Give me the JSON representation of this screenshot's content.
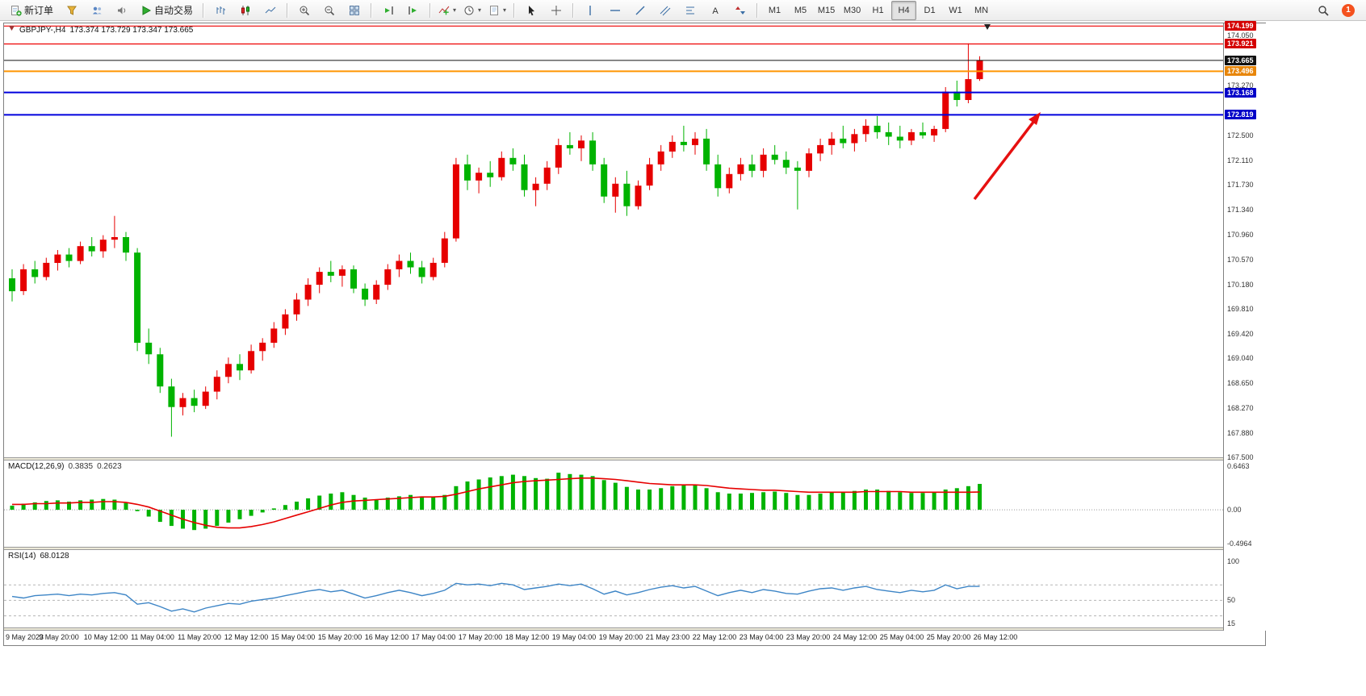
{
  "toolbar": {
    "groups": [
      {
        "items": [
          {
            "name": "new-order",
            "label": "新订单",
            "icon": "newOrder"
          },
          {
            "name": "strategy-tester",
            "icon": "funnel"
          },
          {
            "name": "profiles",
            "icon": "profiles"
          },
          {
            "name": "sounds",
            "icon": "sound"
          },
          {
            "name": "autotrading",
            "label": "自动交易",
            "icon": "play"
          }
        ]
      },
      {
        "items": [
          {
            "name": "bar-chart",
            "icon": "bars"
          },
          {
            "name": "candlestick-chart",
            "icon": "candles"
          },
          {
            "name": "line-chart",
            "icon": "linechart"
          }
        ]
      },
      {
        "items": [
          {
            "name": "zoom-in",
            "icon": "zoomin"
          },
          {
            "name": "zoom-out",
            "icon": "zoomout"
          },
          {
            "name": "tile-windows",
            "icon": "tile"
          }
        ]
      },
      {
        "items": [
          {
            "name": "auto-scroll",
            "icon": "scroll"
          },
          {
            "name": "chart-shift",
            "icon": "shift"
          }
        ]
      },
      {
        "items": [
          {
            "name": "indicators",
            "icon": "indicators",
            "dropdown": true
          },
          {
            "name": "periods",
            "icon": "clock",
            "dropdown": true
          },
          {
            "name": "templates",
            "icon": "template",
            "dropdown": true
          }
        ]
      },
      {
        "items": [
          {
            "name": "cursor",
            "icon": "cursor"
          },
          {
            "name": "crosshair",
            "icon": "crosshair"
          }
        ]
      },
      {
        "items": [
          {
            "name": "vertical-line",
            "icon": "vline"
          },
          {
            "name": "horizontal-line",
            "icon": "hline"
          },
          {
            "name": "trendline",
            "icon": "trend"
          },
          {
            "name": "equidistant-channel",
            "icon": "channel"
          },
          {
            "name": "fibonacci",
            "icon": "fibo"
          },
          {
            "name": "text-tool",
            "icon": "text"
          },
          {
            "name": "arrows-tool",
            "icon": "arrows"
          }
        ]
      },
      {
        "tf": true,
        "items": [
          {
            "name": "tf-m1",
            "label": "M1"
          },
          {
            "name": "tf-m5",
            "label": "M5"
          },
          {
            "name": "tf-m15",
            "label": "M15"
          },
          {
            "name": "tf-m30",
            "label": "M30"
          },
          {
            "name": "tf-h1",
            "label": "H1"
          },
          {
            "name": "tf-h4",
            "label": "H4",
            "active": true
          },
          {
            "name": "tf-d1",
            "label": "D1"
          },
          {
            "name": "tf-w1",
            "label": "W1"
          },
          {
            "name": "tf-mn",
            "label": "MN"
          }
        ]
      }
    ],
    "right": {
      "notification_count": "1"
    }
  },
  "chart": {
    "symbol_period": "GBPJPY-,H4",
    "ohlc": "173.374 173.729 173.347 173.665"
  },
  "colors": {
    "up": "#e60000",
    "down": "#00b300",
    "macd_hist": "#00b300",
    "signal": "#e60000",
    "rsi_line": "#3d85c6",
    "arrow": "#e61010",
    "badge_red": "#d40000",
    "badge_black": "#111111",
    "badge_orange": "#e8860a",
    "badge_blue": "#0000c8"
  },
  "chart_data": {
    "type": "candlestick",
    "title": "GBPJPY-,H4 173.374 173.729 173.347 173.665",
    "symbol": "GBPJPY-",
    "period": "H4",
    "ohlc_current": {
      "open": "173.374",
      "high": "173.729",
      "low": "173.347",
      "close": "173.665"
    },
    "price_axis": {
      "ylim": [
        167.5,
        174.24
      ],
      "labels": [
        "174.050",
        "173.270",
        "172.500",
        "172.110",
        "171.730",
        "171.340",
        "170.960",
        "170.570",
        "170.180",
        "169.810",
        "169.420",
        "169.040",
        "168.650",
        "168.270",
        "167.880",
        "167.500"
      ],
      "badges": [
        {
          "text": "174.199",
          "value": 174.199,
          "color": "#d40000"
        },
        {
          "text": "173.921",
          "value": 173.921,
          "color": "#d40000"
        },
        {
          "text": "173.665",
          "value": 173.665,
          "color": "#111111"
        },
        {
          "text": "173.496",
          "value": 173.496,
          "color": "#e8860a"
        },
        {
          "text": "173.168",
          "value": 173.168,
          "color": "#0000c8"
        },
        {
          "text": "172.819",
          "value": 172.819,
          "color": "#0000c8"
        }
      ]
    },
    "horizontal_lines": [
      {
        "value": 174.199,
        "color": "#ee0000",
        "width": 1.2
      },
      {
        "value": 173.921,
        "color": "#ee0000",
        "width": 1.2
      },
      {
        "value": 173.665,
        "color": "#111111",
        "width": 1
      },
      {
        "value": 173.496,
        "color": "#ff9500",
        "width": 2
      },
      {
        "value": 173.168,
        "color": "#0000dd",
        "width": 2
      },
      {
        "value": 172.819,
        "color": "#0000dd",
        "width": 2
      }
    ],
    "candles": [
      [
        170.28,
        170.42,
        169.92,
        170.08
      ],
      [
        170.08,
        170.5,
        170.02,
        170.42
      ],
      [
        170.42,
        170.55,
        170.2,
        170.3
      ],
      [
        170.3,
        170.6,
        170.25,
        170.52
      ],
      [
        170.52,
        170.72,
        170.4,
        170.65
      ],
      [
        170.65,
        170.75,
        170.45,
        170.55
      ],
      [
        170.55,
        170.85,
        170.5,
        170.78
      ],
      [
        170.78,
        170.92,
        170.62,
        170.7
      ],
      [
        170.7,
        170.95,
        170.6,
        170.88
      ],
      [
        170.88,
        171.25,
        170.75,
        170.92
      ],
      [
        170.92,
        171.0,
        170.55,
        170.68
      ],
      [
        170.68,
        170.75,
        169.15,
        169.28
      ],
      [
        169.28,
        169.5,
        168.95,
        169.1
      ],
      [
        169.1,
        169.2,
        168.5,
        168.6
      ],
      [
        168.6,
        168.72,
        167.82,
        168.28
      ],
      [
        168.28,
        168.5,
        168.15,
        168.42
      ],
      [
        168.42,
        168.55,
        168.2,
        168.3
      ],
      [
        168.3,
        168.6,
        168.25,
        168.52
      ],
      [
        168.52,
        168.85,
        168.4,
        168.75
      ],
      [
        168.75,
        169.05,
        168.65,
        168.95
      ],
      [
        168.95,
        169.1,
        168.7,
        168.85
      ],
      [
        168.85,
        169.25,
        168.8,
        169.15
      ],
      [
        169.15,
        169.35,
        169.0,
        169.28
      ],
      [
        169.28,
        169.6,
        169.2,
        169.5
      ],
      [
        169.5,
        169.8,
        169.4,
        169.72
      ],
      [
        169.72,
        170.05,
        169.62,
        169.95
      ],
      [
        169.95,
        170.28,
        169.85,
        170.18
      ],
      [
        170.18,
        170.45,
        170.05,
        170.38
      ],
      [
        170.38,
        170.55,
        170.22,
        170.32
      ],
      [
        170.32,
        170.48,
        170.15,
        170.42
      ],
      [
        170.42,
        170.48,
        170.05,
        170.12
      ],
      [
        170.12,
        170.2,
        169.85,
        169.95
      ],
      [
        169.95,
        170.25,
        169.88,
        170.18
      ],
      [
        170.18,
        170.5,
        170.1,
        170.42
      ],
      [
        170.42,
        170.65,
        170.3,
        170.55
      ],
      [
        170.55,
        170.68,
        170.35,
        170.45
      ],
      [
        170.45,
        170.55,
        170.2,
        170.3
      ],
      [
        170.3,
        170.6,
        170.25,
        170.52
      ],
      [
        170.52,
        171.0,
        170.45,
        170.9
      ],
      [
        170.9,
        172.15,
        170.85,
        172.05
      ],
      [
        172.05,
        172.2,
        171.65,
        171.8
      ],
      [
        171.8,
        172.0,
        171.6,
        171.92
      ],
      [
        171.92,
        172.1,
        171.7,
        171.85
      ],
      [
        171.85,
        172.25,
        171.8,
        172.15
      ],
      [
        172.15,
        172.3,
        171.95,
        172.05
      ],
      [
        172.05,
        172.2,
        171.55,
        171.65
      ],
      [
        171.65,
        171.85,
        171.4,
        171.75
      ],
      [
        171.75,
        172.1,
        171.65,
        172.0
      ],
      [
        172.0,
        172.45,
        171.9,
        172.35
      ],
      [
        172.35,
        172.55,
        172.2,
        172.3
      ],
      [
        172.3,
        172.5,
        172.1,
        172.42
      ],
      [
        172.42,
        172.55,
        171.95,
        172.05
      ],
      [
        172.05,
        172.15,
        171.45,
        171.55
      ],
      [
        171.55,
        171.85,
        171.3,
        171.75
      ],
      [
        171.75,
        171.95,
        171.25,
        171.4
      ],
      [
        171.4,
        171.8,
        171.35,
        171.72
      ],
      [
        171.72,
        172.15,
        171.65,
        172.05
      ],
      [
        172.05,
        172.35,
        171.95,
        172.25
      ],
      [
        172.25,
        172.5,
        172.15,
        172.4
      ],
      [
        172.4,
        172.65,
        172.25,
        172.35
      ],
      [
        172.35,
        172.55,
        172.2,
        172.45
      ],
      [
        172.45,
        172.6,
        171.95,
        172.05
      ],
      [
        172.05,
        172.2,
        171.55,
        171.68
      ],
      [
        171.68,
        172.0,
        171.6,
        171.9
      ],
      [
        171.9,
        172.15,
        171.8,
        172.05
      ],
      [
        172.05,
        172.2,
        171.85,
        171.95
      ],
      [
        171.95,
        172.3,
        171.85,
        172.2
      ],
      [
        172.2,
        172.35,
        172.05,
        172.12
      ],
      [
        172.12,
        172.25,
        171.9,
        172.0
      ],
      [
        172.0,
        172.1,
        171.35,
        171.95
      ],
      [
        171.95,
        172.3,
        171.85,
        172.22
      ],
      [
        172.22,
        172.45,
        172.1,
        172.35
      ],
      [
        172.35,
        172.55,
        172.2,
        172.45
      ],
      [
        172.45,
        172.65,
        172.3,
        172.38
      ],
      [
        172.38,
        172.6,
        172.25,
        172.52
      ],
      [
        172.52,
        172.75,
        172.4,
        172.65
      ],
      [
        172.65,
        172.8,
        172.45,
        172.55
      ],
      [
        172.55,
        172.7,
        172.35,
        172.48
      ],
      [
        172.48,
        172.65,
        172.3,
        172.42
      ],
      [
        172.42,
        172.6,
        172.35,
        172.55
      ],
      [
        172.55,
        172.7,
        172.45,
        172.5
      ],
      [
        172.5,
        172.65,
        172.4,
        172.6
      ],
      [
        172.6,
        173.25,
        172.55,
        173.18
      ],
      [
        173.18,
        173.35,
        172.95,
        173.05
      ],
      [
        173.05,
        173.929,
        173.0,
        173.374
      ],
      [
        173.374,
        173.729,
        173.347,
        173.665
      ]
    ],
    "time_labels": [
      "9 May 2023",
      "9 May 20:00",
      "10 May 12:00",
      "11 May 04:00",
      "11 May 20:00",
      "12 May 12:00",
      "15 May 04:00",
      "15 May 20:00",
      "16 May 12:00",
      "17 May 04:00",
      "17 May 20:00",
      "18 May 12:00",
      "19 May 04:00",
      "19 May 20:00",
      "21 May 23:00",
      "22 May 12:00",
      "23 May 04:00",
      "23 May 20:00",
      "24 May 12:00",
      "25 May 04:00",
      "25 May 20:00",
      "26 May 12:00"
    ],
    "indicators": {
      "macd": {
        "name": "MACD(12,26,9)",
        "value_main": "0.3835",
        "value_signal": "0.2623",
        "ylim": [
          -0.55,
          0.731
        ],
        "axis_labels": [
          "0.6463",
          "0.00",
          "-0.4964"
        ],
        "histogram": [
          0.06,
          0.09,
          0.11,
          0.13,
          0.14,
          0.12,
          0.14,
          0.15,
          0.16,
          0.15,
          0.1,
          -0.02,
          -0.1,
          -0.18,
          -0.24,
          -0.28,
          -0.3,
          -0.28,
          -0.24,
          -0.19,
          -0.14,
          -0.09,
          -0.04,
          0.02,
          0.07,
          0.12,
          0.17,
          0.21,
          0.24,
          0.26,
          0.22,
          0.18,
          0.15,
          0.18,
          0.2,
          0.22,
          0.2,
          0.19,
          0.22,
          0.35,
          0.42,
          0.45,
          0.48,
          0.5,
          0.52,
          0.5,
          0.47,
          0.46,
          0.55,
          0.53,
          0.52,
          0.5,
          0.44,
          0.4,
          0.34,
          0.3,
          0.3,
          0.32,
          0.35,
          0.36,
          0.36,
          0.32,
          0.26,
          0.24,
          0.24,
          0.25,
          0.26,
          0.27,
          0.25,
          0.22,
          0.22,
          0.24,
          0.26,
          0.27,
          0.28,
          0.3,
          0.3,
          0.28,
          0.26,
          0.25,
          0.25,
          0.26,
          0.3,
          0.32,
          0.35,
          0.3835
        ],
        "signal": [
          0.08,
          0.08,
          0.09,
          0.09,
          0.1,
          0.1,
          0.11,
          0.11,
          0.12,
          0.12,
          0.11,
          0.08,
          0.04,
          -0.02,
          -0.08,
          -0.14,
          -0.19,
          -0.23,
          -0.26,
          -0.27,
          -0.27,
          -0.25,
          -0.22,
          -0.18,
          -0.13,
          -0.08,
          -0.03,
          0.02,
          0.07,
          0.11,
          0.13,
          0.14,
          0.15,
          0.16,
          0.17,
          0.18,
          0.19,
          0.19,
          0.2,
          0.23,
          0.27,
          0.31,
          0.34,
          0.37,
          0.4,
          0.42,
          0.43,
          0.44,
          0.45,
          0.46,
          0.47,
          0.47,
          0.46,
          0.45,
          0.43,
          0.41,
          0.39,
          0.38,
          0.37,
          0.37,
          0.37,
          0.36,
          0.34,
          0.32,
          0.31,
          0.3,
          0.29,
          0.29,
          0.28,
          0.27,
          0.26,
          0.26,
          0.26,
          0.26,
          0.26,
          0.27,
          0.27,
          0.27,
          0.27,
          0.26,
          0.26,
          0.26,
          0.26,
          0.26,
          0.26,
          0.2623
        ]
      },
      "rsi": {
        "name": "RSI(14)",
        "value": "68.0128",
        "ylim": [
          15,
          115
        ],
        "axis_labels": [
          "100",
          "50",
          "15"
        ],
        "levels": [
          70,
          50,
          30
        ],
        "values": [
          55,
          53,
          56,
          57,
          58,
          56,
          58,
          57,
          59,
          60,
          57,
          45,
          47,
          42,
          36,
          39,
          35,
          40,
          43,
          46,
          45,
          49,
          51,
          53,
          56,
          59,
          62,
          64,
          61,
          63,
          58,
          53,
          56,
          60,
          63,
          60,
          56,
          59,
          63,
          72,
          70,
          71,
          69,
          72,
          70,
          64,
          66,
          68,
          71,
          69,
          71,
          65,
          58,
          62,
          57,
          60,
          64,
          67,
          69,
          66,
          68,
          62,
          56,
          60,
          63,
          60,
          64,
          62,
          59,
          58,
          62,
          65,
          66,
          63,
          66,
          68,
          64,
          62,
          60,
          63,
          61,
          63,
          70,
          65,
          68,
          68.01
        ]
      }
    },
    "annotations": {
      "arrow": "red up-right arrow pointing toward the breakout area"
    }
  }
}
